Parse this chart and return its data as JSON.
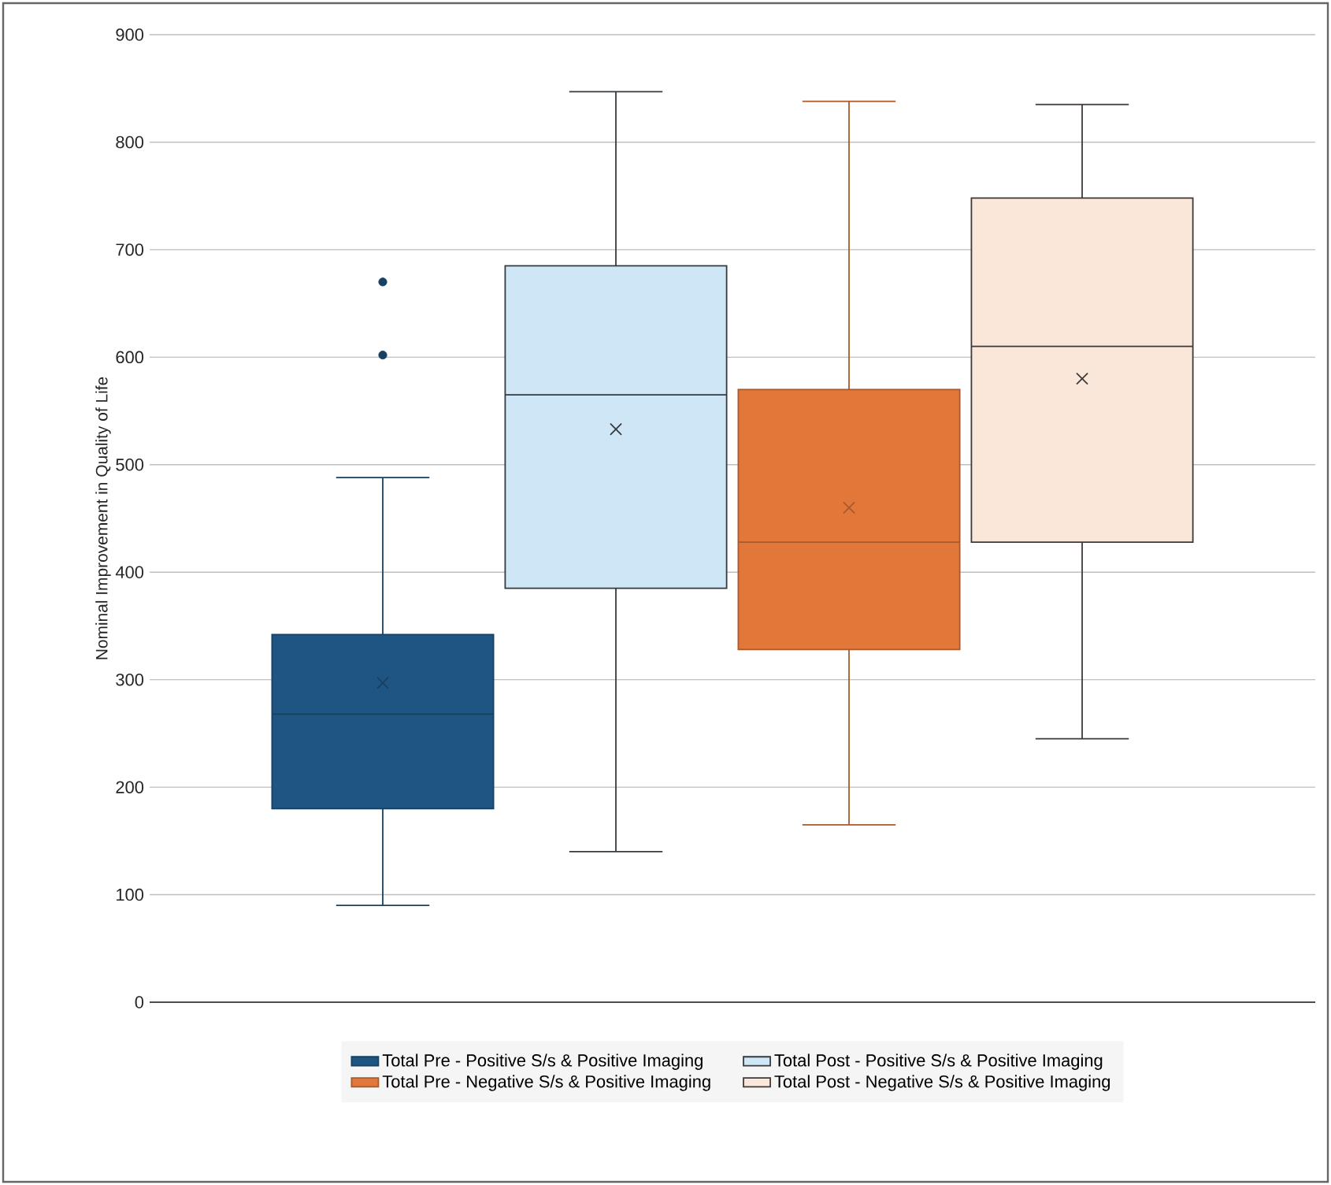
{
  "chart_data": {
    "type": "box",
    "ylabel": "Nominal Improvement in Quality of Life",
    "categories": [
      null
    ],
    "series": [
      {
        "name": "Total Pre - Positive S/s & Positive Imaging",
        "color": "#1f5582",
        "boxes": [
          {
            "low": 90,
            "q1": 180,
            "median": 268,
            "q3": 342,
            "high": 488,
            "mean": 297,
            "outliers": [
              602,
              670
            ]
          }
        ]
      },
      {
        "name": "Total Post - Positive S/s & Positive Imaging",
        "color": "#cfe6f7",
        "boxes": [
          {
            "low": 140,
            "q1": 385,
            "median": 565,
            "q3": 685,
            "high": 847,
            "mean": 533
          }
        ]
      },
      {
        "name": "Total Pre - Negative S/s & Positive Imaging",
        "color": "#e2773a",
        "boxes": [
          {
            "low": 165,
            "q1": 328,
            "median": 428,
            "q3": 570,
            "high": 838,
            "mean": 460
          }
        ]
      },
      {
        "name": "Total Post - Negative S/s & Positive Imaging",
        "color": "#fbe6da",
        "boxes": [
          {
            "low": 245,
            "q1": 428,
            "median": 610,
            "q3": 748,
            "high": 835,
            "mean": 580
          }
        ]
      }
    ],
    "ylim": [
      0,
      900
    ],
    "yticks": [
      0,
      100,
      200,
      300,
      400,
      500,
      600,
      700,
      800,
      900
    ],
    "grid": "y",
    "legend": "bottom"
  }
}
